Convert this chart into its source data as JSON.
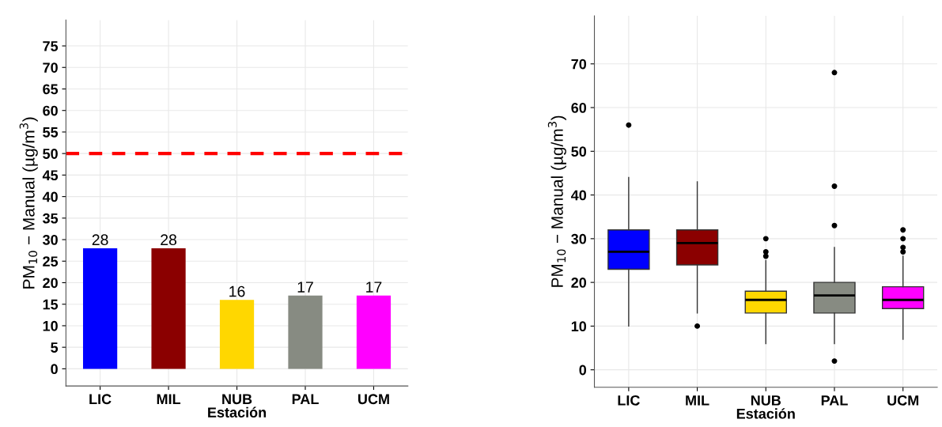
{
  "chart_data": [
    {
      "type": "bar",
      "xlabel": "Estación",
      "ylabel": "PM$_{10}$ − Manual (µg/m$^{3}$)",
      "categories": [
        "LIC",
        "MIL",
        "NUB",
        "PAL",
        "UCM"
      ],
      "values": [
        28,
        28,
        16,
        17,
        17
      ],
      "colors": [
        "#0000ff",
        "#8b0000",
        "#ffd700",
        "#878b82",
        "#ff00ff"
      ],
      "data_labels": true,
      "ylim": [
        -4,
        81
      ],
      "yticks": [
        0,
        5,
        10,
        15,
        20,
        25,
        30,
        35,
        40,
        45,
        50,
        55,
        60,
        65,
        70,
        75
      ],
      "ref_lines": [
        {
          "axis": "y",
          "value": 50,
          "color": "#ff0000",
          "line_style": "dashed"
        }
      ],
      "grid": true
    },
    {
      "type": "box",
      "xlabel": "Estación",
      "ylabel": "PM$_{10}$ − Manual (µg/m$^{3}$)",
      "categories": [
        "LIC",
        "MIL",
        "NUB",
        "PAL",
        "UCM"
      ],
      "colors": [
        "#0000ff",
        "#8b0000",
        "#ffd700",
        "#878b82",
        "#ff00ff"
      ],
      "boxes": [
        {
          "low": 10,
          "q1": 23,
          "median": 27,
          "q3": 32,
          "high": 44,
          "outliers": [
            56
          ]
        },
        {
          "low": 13,
          "q1": 24,
          "median": 29,
          "q3": 32,
          "high": 43,
          "outliers": [
            10
          ]
        },
        {
          "low": 6,
          "q1": 13,
          "median": 16,
          "q3": 18,
          "high": 25,
          "outliers": [
            26,
            27,
            30
          ]
        },
        {
          "low": 6,
          "q1": 13,
          "median": 17,
          "q3": 20,
          "high": 28,
          "outliers": [
            2,
            33,
            42,
            68
          ]
        },
        {
          "low": 7,
          "q1": 14,
          "median": 16,
          "q3": 19,
          "high": 26,
          "outliers": [
            27,
            28,
            30,
            32
          ]
        }
      ],
      "ylim": [
        -4,
        81
      ],
      "yticks": [
        0,
        10,
        20,
        30,
        40,
        50,
        60,
        70
      ],
      "grid": true
    }
  ]
}
